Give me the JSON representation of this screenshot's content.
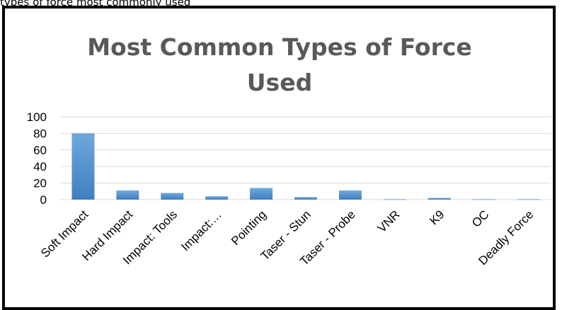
{
  "caption_fragment": "types of force most commonly used",
  "chart_data": {
    "type": "bar",
    "title": "Most Common Types of Force Used",
    "categories": [
      "Soft Impact",
      "Hard Impact",
      "Impact:  Tools",
      "Impact:…",
      "Pointing",
      "Taser - Stun",
      "Taser - Probe",
      "VNR",
      "K9",
      "OC",
      "Deadly Force"
    ],
    "series": [
      {
        "values": [
          80,
          11,
          8,
          4,
          14,
          3,
          11,
          0.5,
          2,
          0.5,
          0.5
        ]
      }
    ],
    "ylim": [
      0,
      100
    ],
    "yticks": [
      0,
      20,
      40,
      60,
      80,
      100
    ],
    "xlabel": "",
    "ylabel": "",
    "grid": true,
    "legend": "none",
    "colors": {
      "bar": "#5B9BD5",
      "bar_dark": "#3F7FC1",
      "grid": "#D9D9D9",
      "axis_text": "#000000",
      "title": "#595959"
    }
  }
}
